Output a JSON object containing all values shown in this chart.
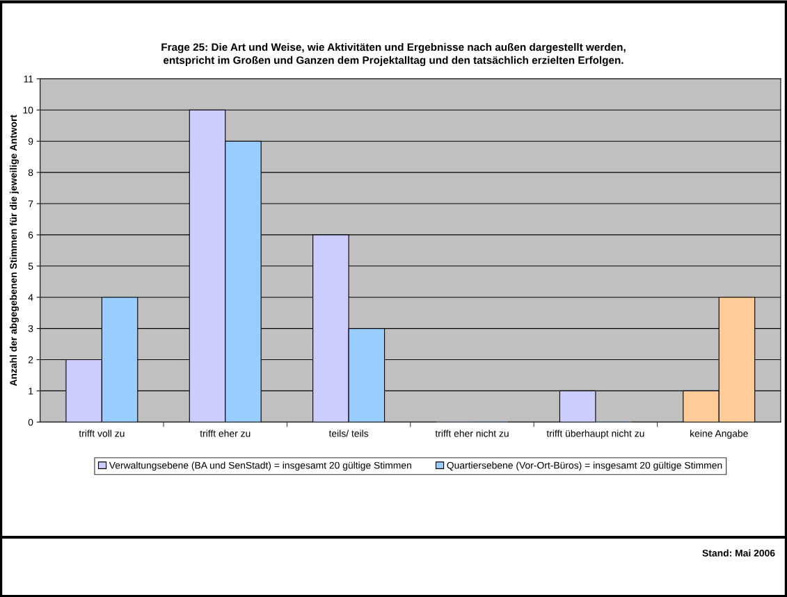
{
  "chart_data": {
    "type": "bar",
    "title": "Frage 25: Die Art und Weise, wie Aktivitäten und Ergebnisse nach außen dargestellt werden,\nentspricht im Großen und Ganzen dem Projektalltag und den tatsächlich erzielten Erfolgen.",
    "ylabel": "Anzahl der abgegebenen Stimmen für die jeweilige Antwort",
    "categories": [
      "trifft voll zu",
      "trifft eher zu",
      "teils/ teils",
      "trifft eher nicht zu",
      "trifft überhaupt nicht zu",
      "keine Angabe"
    ],
    "series": [
      {
        "name": "Verwaltungsebene (BA und SenStadt) = insgesamt 20 gültige Stimmen",
        "colors": [
          "#ccccff",
          "#ccccff",
          "#ccccff",
          "#ccccff",
          "#ccccff",
          "#ffcc99"
        ],
        "values": [
          2,
          10,
          6,
          0,
          1,
          1
        ]
      },
      {
        "name": "Quartiersebene (Vor-Ort-Büros) = insgesamt 20 gültige Stimmen",
        "colors": [
          "#99ccff",
          "#99ccff",
          "#99ccff",
          "#99ccff",
          "#99ccff",
          "#ffcc99"
        ],
        "values": [
          4,
          9,
          3,
          0,
          0,
          4
        ]
      }
    ],
    "ylim": [
      0,
      11
    ],
    "yticks": [
      0,
      1,
      2,
      3,
      4,
      5,
      6,
      7,
      8,
      9,
      10,
      11
    ],
    "grid": "y",
    "legend": "bottom",
    "annotations": [
      "Stand: Mai 2006"
    ]
  }
}
